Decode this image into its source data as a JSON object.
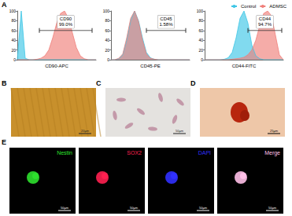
{
  "chart_data": [
    {
      "type": "area",
      "panel": "A",
      "xlabel": "CD90-APC",
      "x": [
        0,
        5,
        10,
        15,
        20,
        25,
        30,
        35,
        40,
        45,
        50,
        55,
        60,
        65,
        70,
        75,
        80,
        85,
        90,
        95,
        100
      ],
      "series": [
        {
          "name": "Control",
          "color": "#3ec6e6",
          "values": [
            0,
            100,
            3,
            0,
            0,
            0,
            0,
            0,
            0,
            0,
            0,
            0,
            0,
            0,
            0,
            0,
            0,
            0,
            0,
            0,
            0
          ]
        },
        {
          "name": "ADMSC",
          "color": "#f07f7a",
          "values": [
            0,
            0,
            0,
            0,
            0,
            1,
            3,
            8,
            20,
            45,
            75,
            95,
            100,
            85,
            55,
            25,
            8,
            2,
            0,
            0,
            0
          ]
        }
      ],
      "gate": {
        "x": [
          28,
          95
        ],
        "y": 60
      },
      "annotation": [
        "CD90",
        "99.0%"
      ],
      "xlim": [
        0,
        100
      ],
      "ylim": [
        0,
        100
      ],
      "yticks": [
        0,
        20,
        40,
        60,
        80,
        100
      ],
      "tick_labels": "y",
      "grid": false,
      "legend": "top-right"
    },
    {
      "type": "area",
      "panel": "A",
      "xlabel": "CD45-PE",
      "x": [
        0,
        5,
        10,
        15,
        20,
        25,
        30,
        35,
        40,
        45,
        50,
        55,
        60,
        65,
        70,
        75,
        80,
        85,
        90,
        95,
        100
      ],
      "series": [
        {
          "name": "Control",
          "color": "#3ec6e6",
          "values": [
            0,
            0,
            2,
            10,
            40,
            80,
            100,
            80,
            45,
            15,
            4,
            1,
            0,
            0,
            0,
            0,
            0,
            0,
            0,
            0,
            0
          ]
        },
        {
          "name": "ADMSC",
          "color": "#f07f7a",
          "values": [
            0,
            0,
            3,
            12,
            45,
            85,
            100,
            78,
            40,
            12,
            3,
            1,
            0,
            0,
            0,
            0,
            0,
            0,
            0,
            0,
            0
          ]
        }
      ],
      "gate": {
        "x": [
          45,
          95
        ],
        "y": 60
      },
      "annotation": [
        "CD45",
        "1.58%"
      ],
      "xlim": [
        0,
        100
      ],
      "ylim": [
        0,
        100
      ],
      "yticks": [
        0,
        20,
        40,
        60,
        80,
        100
      ],
      "tick_labels": "y",
      "grid": false,
      "legend": "top-right"
    },
    {
      "type": "area",
      "panel": "A",
      "xlabel": "CD44-FITC",
      "x": [
        0,
        5,
        10,
        15,
        20,
        25,
        30,
        35,
        40,
        45,
        50,
        55,
        60,
        65,
        70,
        75,
        80,
        85,
        90,
        95,
        100
      ],
      "series": [
        {
          "name": "Control",
          "color": "#3ec6e6",
          "values": [
            0,
            0,
            0,
            0,
            0,
            1,
            4,
            15,
            45,
            85,
            100,
            75,
            30,
            8,
            2,
            0,
            0,
            0,
            0,
            0,
            0
          ]
        },
        {
          "name": "ADMSC",
          "color": "#f07f7a",
          "values": [
            0,
            0,
            0,
            0,
            0,
            0,
            0,
            1,
            2,
            3,
            5,
            10,
            20,
            40,
            70,
            95,
            100,
            90,
            50,
            10,
            0
          ]
        }
      ],
      "gate": {
        "x": [
          55,
          98
        ],
        "y": 60
      },
      "annotation": [
        "CD44",
        "94.7%"
      ],
      "xlim": [
        0,
        100
      ],
      "ylim": [
        0,
        100
      ],
      "yticks": [
        0,
        20,
        40,
        60,
        80,
        100
      ],
      "tick_labels": "y",
      "grid": false,
      "legend": "top-right"
    }
  ],
  "panel_a_label": "A",
  "images": [
    {
      "label": "B",
      "scale_bar": "20μm",
      "color": "#c8902c"
    },
    {
      "label": "C",
      "scale_bar": "50μm",
      "color": "#e4e2df"
    },
    {
      "label": "D",
      "scale_bar": "25μm",
      "color": "#eec7a8"
    }
  ],
  "fluorescence": {
    "label": "E",
    "scale_bar": "50μm",
    "channels": [
      {
        "name": "Nestin",
        "color": "#2ee02e"
      },
      {
        "name": "SOX2",
        "color": "#ff2050"
      },
      {
        "name": "DAPI",
        "color": "#3030ff"
      },
      {
        "name": "Merge",
        "color": "#ffc0e8"
      }
    ]
  }
}
